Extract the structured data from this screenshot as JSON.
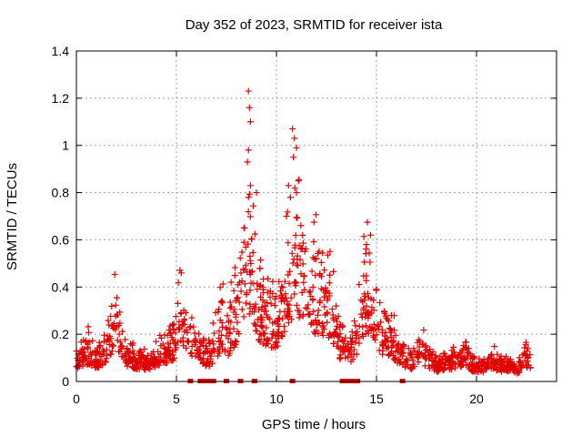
{
  "chart_data": {
    "type": "scatter",
    "title": "Day 352 of 2023, SRMTID for receiver ista",
    "xlabel": "GPS time / hours",
    "ylabel": "SRMTID / TECUs",
    "xlim": [
      0,
      24
    ],
    "ylim": [
      0,
      1.4
    ],
    "xticks": [
      0,
      5,
      10,
      15,
      20
    ],
    "xtick_labels": [
      "0",
      "5",
      "10",
      "15",
      "20"
    ],
    "yticks": [
      0,
      0.2,
      0.4,
      0.6,
      0.8,
      1,
      1.2,
      1.4
    ],
    "ytick_labels": [
      "0",
      "0.2",
      "0.4",
      "0.6",
      "0.8",
      "1",
      "1.2",
      "1.4"
    ],
    "grid": true,
    "legend": "none",
    "marker": "+",
    "color": "#e00000",
    "baseline_values": [
      [
        0.0,
        0.08
      ],
      [
        0.3,
        0.11
      ],
      [
        0.6,
        0.14
      ],
      [
        1.0,
        0.1
      ],
      [
        1.4,
        0.13
      ],
      [
        1.7,
        0.22
      ],
      [
        2.0,
        0.3
      ],
      [
        2.3,
        0.13
      ],
      [
        2.7,
        0.1
      ],
      [
        3.0,
        0.09
      ],
      [
        3.5,
        0.08
      ],
      [
        4.0,
        0.11
      ],
      [
        4.5,
        0.15
      ],
      [
        4.9,
        0.18
      ],
      [
        5.2,
        0.32
      ],
      [
        5.5,
        0.27
      ],
      [
        5.8,
        0.2
      ],
      [
        6.2,
        0.13
      ],
      [
        6.6,
        0.1
      ],
      [
        7.0,
        0.18
      ],
      [
        7.3,
        0.28
      ],
      [
        7.6,
        0.22
      ],
      [
        7.9,
        0.3
      ],
      [
        8.2,
        0.4
      ],
      [
        8.5,
        0.55
      ],
      [
        8.8,
        0.45
      ],
      [
        9.1,
        0.35
      ],
      [
        9.5,
        0.31
      ],
      [
        9.9,
        0.28
      ],
      [
        10.2,
        0.32
      ],
      [
        10.6,
        0.5
      ],
      [
        10.9,
        0.62
      ],
      [
        11.2,
        0.5
      ],
      [
        11.6,
        0.4
      ],
      [
        12.0,
        0.42
      ],
      [
        12.4,
        0.38
      ],
      [
        12.8,
        0.35
      ],
      [
        13.1,
        0.2
      ],
      [
        13.5,
        0.14
      ],
      [
        13.9,
        0.16
      ],
      [
        14.3,
        0.38
      ],
      [
        14.6,
        0.42
      ],
      [
        15.0,
        0.3
      ],
      [
        15.3,
        0.2
      ],
      [
        15.7,
        0.22
      ],
      [
        16.0,
        0.14
      ],
      [
        16.4,
        0.1
      ],
      [
        16.8,
        0.08
      ],
      [
        17.2,
        0.15
      ],
      [
        17.6,
        0.1
      ],
      [
        18.0,
        0.07
      ],
      [
        18.5,
        0.08
      ],
      [
        19.0,
        0.09
      ],
      [
        19.4,
        0.11
      ],
      [
        19.8,
        0.07
      ],
      [
        20.3,
        0.06
      ],
      [
        20.8,
        0.1
      ],
      [
        21.2,
        0.07
      ],
      [
        21.7,
        0.06
      ],
      [
        22.1,
        0.05
      ],
      [
        22.4,
        0.12
      ],
      [
        22.7,
        0.08
      ]
    ],
    "highlight_points": [
      [
        8.6,
        1.23
      ],
      [
        8.65,
        1.16
      ],
      [
        8.7,
        1.1
      ],
      [
        8.6,
        0.98
      ],
      [
        8.55,
        0.93
      ],
      [
        8.7,
        0.83
      ],
      [
        8.6,
        0.78
      ],
      [
        9.0,
        0.8
      ],
      [
        10.8,
        1.07
      ],
      [
        10.9,
        1.03
      ],
      [
        11.0,
        0.99
      ],
      [
        10.85,
        0.95
      ],
      [
        11.1,
        0.85
      ],
      [
        11.0,
        0.8
      ],
      [
        10.6,
        0.83
      ],
      [
        10.7,
        0.78
      ],
      [
        8.4,
        0.65
      ],
      [
        10.5,
        0.7
      ],
      [
        14.7,
        0.62
      ],
      [
        14.5,
        0.58
      ]
    ],
    "zero_markers_x": [
      5.7,
      6.2,
      6.35,
      6.5,
      6.6,
      6.75,
      6.85,
      7.5,
      8.2,
      8.9,
      10.8,
      13.3,
      13.45,
      13.6,
      13.75,
      13.9,
      14.05,
      16.3
    ]
  }
}
